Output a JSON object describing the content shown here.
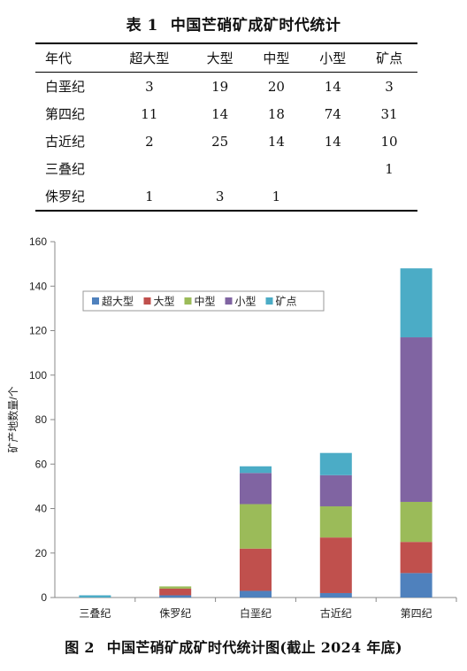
{
  "table": {
    "caption_num": "表 1",
    "caption_text": "中国芒硝矿成矿时代统计",
    "headers": [
      "年代",
      "超大型",
      "大型",
      "中型",
      "小型",
      "矿点"
    ],
    "rows": [
      [
        "白垩纪",
        "3",
        "19",
        "20",
        "14",
        "3"
      ],
      [
        "第四纪",
        "11",
        "14",
        "18",
        "74",
        "31"
      ],
      [
        "古近纪",
        "2",
        "25",
        "14",
        "14",
        "10"
      ],
      [
        "三叠纪",
        "",
        "",
        "",
        "",
        "1"
      ],
      [
        "侏罗纪",
        "1",
        "3",
        "1",
        "",
        ""
      ]
    ]
  },
  "figure": {
    "caption_num": "图 2",
    "caption_text": "中国芒硝矿成矿时代统计图(截止 2024 年底)"
  },
  "chart_data": {
    "type": "bar",
    "stacked": true,
    "categories": [
      "三叠纪",
      "侏罗纪",
      "白垩纪",
      "古近纪",
      "第四纪"
    ],
    "series": [
      {
        "name": "超大型",
        "color": "#4f81bd",
        "values": [
          0,
          1,
          3,
          2,
          11
        ]
      },
      {
        "name": "大型",
        "color": "#c0504d",
        "values": [
          0,
          3,
          19,
          25,
          14
        ]
      },
      {
        "name": "中型",
        "color": "#9bbb59",
        "values": [
          0,
          1,
          20,
          14,
          18
        ]
      },
      {
        "name": "小型",
        "color": "#8064a2",
        "values": [
          0,
          0,
          14,
          14,
          74
        ]
      },
      {
        "name": "矿点",
        "color": "#4bacc6",
        "values": [
          1,
          0,
          3,
          10,
          31
        ]
      }
    ],
    "ylabel": "矿产地数量/个",
    "ylim": [
      0,
      160
    ],
    "yticks": [
      0,
      20,
      40,
      60,
      80,
      100,
      120,
      140,
      160
    ],
    "legend_position": "top-left"
  }
}
